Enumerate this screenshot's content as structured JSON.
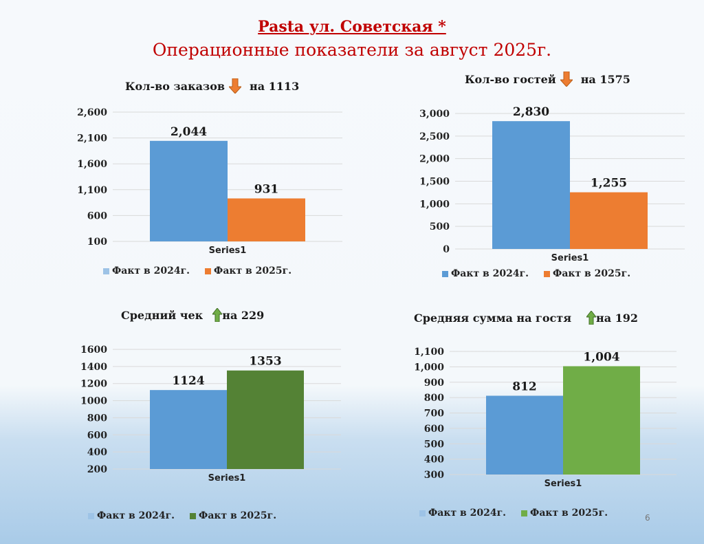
{
  "header": {
    "title": "Pasta ул. Советская *",
    "subtitle": "Операционные показатели за август  2025г."
  },
  "page_number": "6",
  "colors": {
    "series_2024": "#5b9bd5",
    "series_2025_orange": "#ed7d31",
    "series_2025_darkgreen": "#548235",
    "series_2025_green": "#70ad47",
    "arrow_down": "#ed7d31",
    "arrow_up": "#70ad47"
  },
  "chart_data": [
    {
      "id": "orders",
      "type": "bar",
      "title_left": "Кол-во заказов",
      "title_right": "на 1113",
      "trend": "down",
      "categories": [
        "Series1"
      ],
      "series": [
        {
          "name": "Факт в 2024г.",
          "values": [
            2044
          ],
          "value_label": "2,044"
        },
        {
          "name": "Факт в 2025г.",
          "values": [
            931
          ],
          "value_label": "931"
        }
      ],
      "ylim": [
        100,
        2600
      ],
      "yticks": [
        100,
        600,
        1100,
        1600,
        2100,
        2600
      ],
      "ytick_labels": [
        "100",
        "600",
        "1,100",
        "1,600",
        "2,100",
        "2,600"
      ],
      "grid": true,
      "legend": "bottom"
    },
    {
      "id": "guests",
      "type": "bar",
      "title_left": "Кол-во гостей",
      "title_right": "на 1575",
      "trend": "down",
      "categories": [
        "Series1"
      ],
      "series": [
        {
          "name": "Факт в 2024г.",
          "values": [
            2830
          ],
          "value_label": "2,830"
        },
        {
          "name": "Факт в 2025г.",
          "values": [
            1255
          ],
          "value_label": "1,255"
        }
      ],
      "ylim": [
        0,
        3000
      ],
      "yticks": [
        0,
        500,
        1000,
        1500,
        2000,
        2500,
        3000
      ],
      "ytick_labels": [
        "0",
        "500",
        "1,000",
        "1,500",
        "2,000",
        "2,500",
        "3,000"
      ],
      "grid": true,
      "legend": "bottom"
    },
    {
      "id": "avg_check",
      "type": "bar",
      "title_left": "Средний чек",
      "title_right": "на 229",
      "trend": "up",
      "categories": [
        "Series1"
      ],
      "series": [
        {
          "name": "Факт в 2024г.",
          "values": [
            1124
          ],
          "value_label": "1124"
        },
        {
          "name": "Факт в 2025г.",
          "values": [
            1353
          ],
          "value_label": "1353"
        }
      ],
      "ylim": [
        200,
        1600
      ],
      "yticks": [
        200,
        400,
        600,
        800,
        1000,
        1200,
        1400,
        1600
      ],
      "ytick_labels": [
        "200",
        "400",
        "600",
        "800",
        "1000",
        "1200",
        "1400",
        "1600"
      ],
      "grid": true,
      "legend": "bottom"
    },
    {
      "id": "avg_per_guest",
      "type": "bar",
      "title_left": "Средняя сумма на гостя",
      "title_right": "на 192",
      "trend": "up",
      "categories": [
        "Series1"
      ],
      "series": [
        {
          "name": "Факт в 2024г.",
          "values": [
            812
          ],
          "value_label": "812"
        },
        {
          "name": "Факт в 2025г.",
          "values": [
            1004
          ],
          "value_label": "1,004"
        }
      ],
      "ylim": [
        300,
        1100
      ],
      "yticks": [
        300,
        400,
        500,
        600,
        700,
        800,
        900,
        1000,
        1100
      ],
      "ytick_labels": [
        "300",
        "400",
        "500",
        "600",
        "700",
        "800",
        "900",
        "1,000",
        "1,100"
      ],
      "grid": true,
      "legend": "bottom"
    }
  ]
}
